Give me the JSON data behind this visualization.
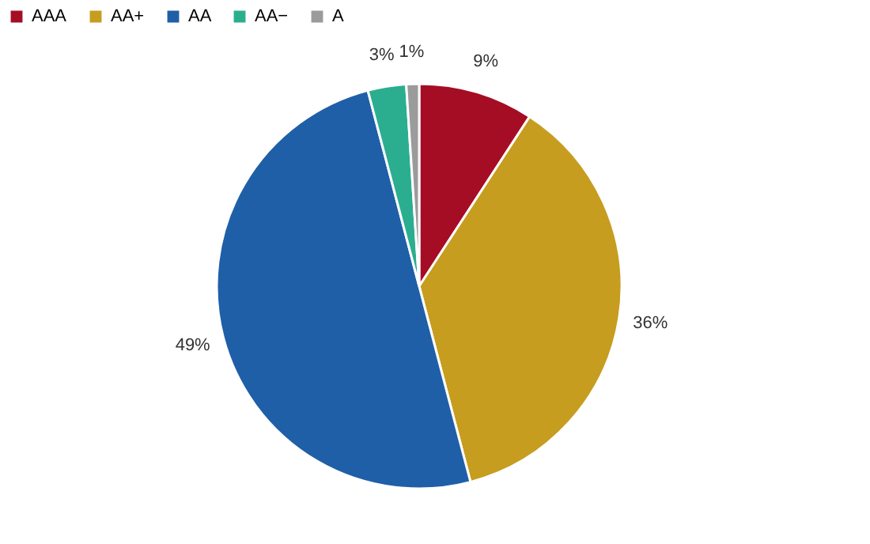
{
  "chart_data": {
    "type": "pie",
    "categories": [
      "AAA",
      "AA+",
      "AA",
      "AA−",
      "A"
    ],
    "values": [
      9,
      36,
      49,
      3,
      1
    ],
    "colors": [
      "#a50d25",
      "#c69d1e",
      "#1f5fa8",
      "#2bae8f",
      "#9b9b9b"
    ],
    "value_labels": [
      "9%",
      "36%",
      "49%",
      "3%",
      "1%"
    ],
    "legend": "top"
  }
}
